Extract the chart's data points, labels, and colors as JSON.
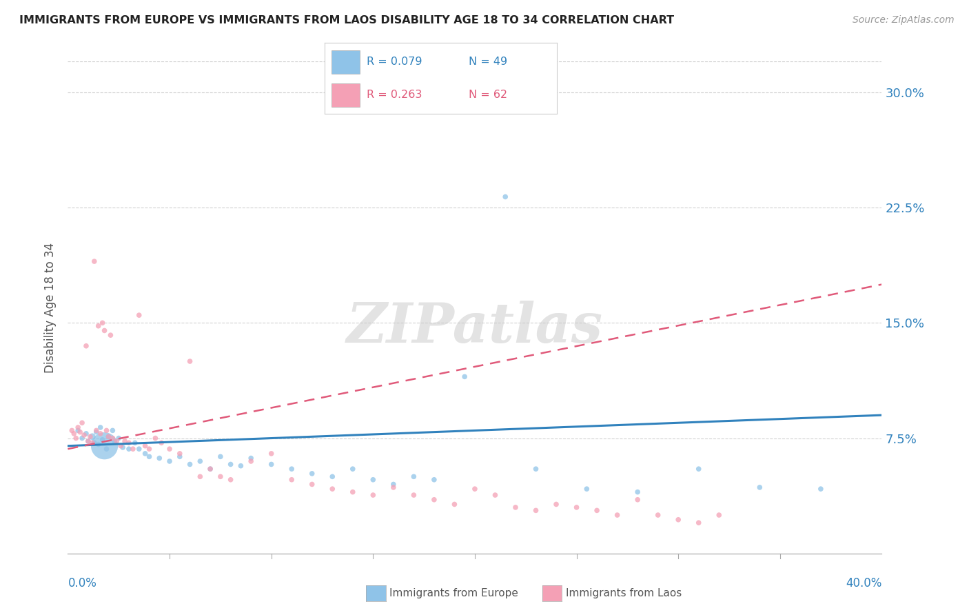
{
  "title": "IMMIGRANTS FROM EUROPE VS IMMIGRANTS FROM LAOS DISABILITY AGE 18 TO 34 CORRELATION CHART",
  "source": "Source: ZipAtlas.com",
  "ylabel": "Disability Age 18 to 34",
  "xlim": [
    0.0,
    0.4
  ],
  "ylim": [
    0.0,
    0.32
  ],
  "ytick_vals": [
    0.075,
    0.15,
    0.225,
    0.3
  ],
  "ytick_labels": [
    "7.5%",
    "15.0%",
    "22.5%",
    "30.0%"
  ],
  "color_europe": "#8fc3e8",
  "color_laos": "#f4a0b5",
  "color_europe_line": "#3182bd",
  "color_laos_line": "#e05a7a",
  "color_grid": "#d0d0d0",
  "legend_europe_R": "0.079",
  "legend_europe_N": "49",
  "legend_laos_R": "0.263",
  "legend_laos_N": "62",
  "europe_x": [
    0.005,
    0.007,
    0.009,
    0.01,
    0.012,
    0.013,
    0.014,
    0.015,
    0.016,
    0.017,
    0.018,
    0.019,
    0.02,
    0.022,
    0.023,
    0.025,
    0.027,
    0.03,
    0.033,
    0.035,
    0.038,
    0.04,
    0.045,
    0.05,
    0.055,
    0.06,
    0.065,
    0.07,
    0.075,
    0.08,
    0.085,
    0.09,
    0.1,
    0.11,
    0.12,
    0.13,
    0.14,
    0.15,
    0.16,
    0.17,
    0.18,
    0.195,
    0.215,
    0.23,
    0.255,
    0.28,
    0.31,
    0.34,
    0.37
  ],
  "europe_y": [
    0.08,
    0.075,
    0.078,
    0.073,
    0.076,
    0.072,
    0.079,
    0.071,
    0.082,
    0.074,
    0.07,
    0.068,
    0.076,
    0.08,
    0.073,
    0.075,
    0.069,
    0.068,
    0.072,
    0.068,
    0.065,
    0.063,
    0.062,
    0.06,
    0.063,
    0.058,
    0.06,
    0.055,
    0.063,
    0.058,
    0.057,
    0.062,
    0.058,
    0.055,
    0.052,
    0.05,
    0.055,
    0.048,
    0.045,
    0.05,
    0.048,
    0.115,
    0.232,
    0.055,
    0.042,
    0.04,
    0.055,
    0.043,
    0.042
  ],
  "europe_size": [
    30,
    30,
    30,
    30,
    50,
    30,
    30,
    30,
    30,
    30,
    800,
    30,
    30,
    30,
    30,
    30,
    30,
    30,
    30,
    30,
    30,
    30,
    30,
    30,
    30,
    30,
    30,
    30,
    30,
    30,
    30,
    30,
    30,
    30,
    30,
    30,
    30,
    30,
    30,
    30,
    30,
    30,
    30,
    30,
    30,
    30,
    30,
    30,
    30
  ],
  "laos_x": [
    0.002,
    0.003,
    0.004,
    0.005,
    0.006,
    0.007,
    0.008,
    0.009,
    0.01,
    0.011,
    0.012,
    0.013,
    0.014,
    0.015,
    0.016,
    0.017,
    0.018,
    0.019,
    0.02,
    0.021,
    0.022,
    0.024,
    0.026,
    0.028,
    0.03,
    0.032,
    0.035,
    0.038,
    0.04,
    0.043,
    0.046,
    0.05,
    0.055,
    0.06,
    0.065,
    0.07,
    0.075,
    0.08,
    0.09,
    0.1,
    0.11,
    0.12,
    0.13,
    0.14,
    0.15,
    0.16,
    0.17,
    0.18,
    0.19,
    0.2,
    0.21,
    0.22,
    0.23,
    0.24,
    0.25,
    0.26,
    0.27,
    0.28,
    0.29,
    0.3,
    0.31,
    0.32
  ],
  "laos_y": [
    0.08,
    0.078,
    0.075,
    0.082,
    0.079,
    0.085,
    0.077,
    0.135,
    0.073,
    0.076,
    0.072,
    0.19,
    0.08,
    0.148,
    0.078,
    0.15,
    0.145,
    0.08,
    0.076,
    0.142,
    0.075,
    0.073,
    0.07,
    0.073,
    0.072,
    0.068,
    0.155,
    0.07,
    0.068,
    0.075,
    0.072,
    0.068,
    0.065,
    0.125,
    0.05,
    0.055,
    0.05,
    0.048,
    0.06,
    0.065,
    0.048,
    0.045,
    0.042,
    0.04,
    0.038,
    0.043,
    0.038,
    0.035,
    0.032,
    0.042,
    0.038,
    0.03,
    0.028,
    0.032,
    0.03,
    0.028,
    0.025,
    0.035,
    0.025,
    0.022,
    0.02,
    0.025
  ],
  "laos_size": [
    30,
    30,
    30,
    30,
    30,
    30,
    30,
    30,
    30,
    30,
    30,
    30,
    30,
    30,
    30,
    30,
    30,
    30,
    30,
    30,
    30,
    30,
    30,
    30,
    30,
    30,
    30,
    30,
    30,
    30,
    30,
    30,
    30,
    30,
    30,
    30,
    30,
    30,
    30,
    30,
    30,
    30,
    30,
    30,
    30,
    30,
    30,
    30,
    30,
    30,
    30,
    30,
    30,
    30,
    30,
    30,
    30,
    30,
    30,
    30,
    30,
    30
  ]
}
